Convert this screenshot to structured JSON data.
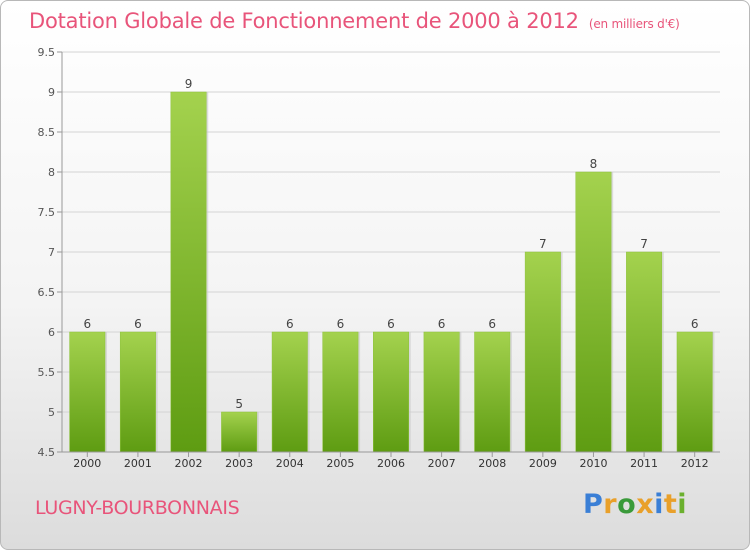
{
  "header": {
    "title": "Dotation Globale de Fonctionnement de 2000 à 2012",
    "subtitle": "(en milliers d'€)"
  },
  "footer": {
    "commune": "LUGNY-BOURBONNAIS",
    "logo": {
      "text": "Proxiti",
      "letter_colors": [
        "#3a7fd6",
        "#e9a02a",
        "#3a9a3a",
        "#e9a02a",
        "#3a7fd6",
        "#e9a02a",
        "#6bb02e"
      ]
    }
  },
  "colors": {
    "title": "#e8547a",
    "bar_light": "#a4d24e",
    "bar_dark": "#5e9c12",
    "grid": "#d4d4d4",
    "axis": "#999999"
  },
  "chart_data": {
    "type": "bar",
    "categories": [
      "2000",
      "2001",
      "2002",
      "2003",
      "2004",
      "2005",
      "2006",
      "2007",
      "2008",
      "2009",
      "2010",
      "2011",
      "2012"
    ],
    "values": [
      6,
      6,
      9,
      5,
      6,
      6,
      6,
      6,
      6,
      7,
      8,
      7,
      6
    ],
    "data_labels": [
      "6",
      "6",
      "9",
      "5",
      "6",
      "6",
      "6",
      "6",
      "6",
      "7",
      "8",
      "7",
      "6"
    ],
    "ylim": [
      4.5,
      9.5
    ],
    "yticks": [
      4.5,
      5,
      5.5,
      6,
      6.5,
      7,
      7.5,
      8,
      8.5,
      9,
      9.5
    ],
    "ytick_labels": [
      "4.5",
      "5",
      "5.5",
      "6",
      "6.5",
      "7",
      "7.5",
      "8",
      "8.5",
      "9",
      "9.5"
    ],
    "grid": true,
    "legend": false
  }
}
